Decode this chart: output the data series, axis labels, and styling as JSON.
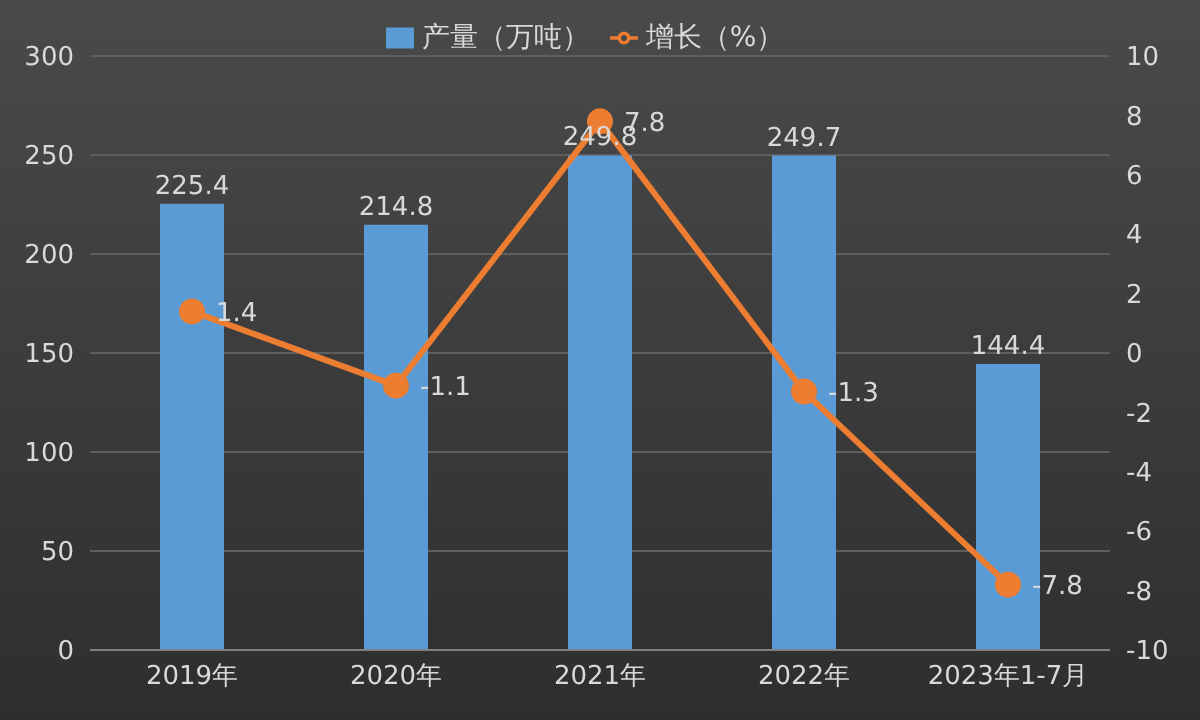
{
  "chart_data": {
    "type": "bar",
    "categories": [
      "2019年",
      "2020年",
      "2021年",
      "2022年",
      "2023年1-7月"
    ],
    "series": [
      {
        "name": "产量（万吨）",
        "color": "#5b9bd5",
        "values": [
          225.4,
          214.8,
          249.8,
          249.7,
          144.4
        ]
      },
      {
        "name": "增长（%）",
        "type": "line",
        "axis": "y2",
        "color": "#ed7d31",
        "values": [
          1.4,
          -1.1,
          7.8,
          -1.3,
          -7.8
        ]
      }
    ],
    "ylim": [
      0,
      300
    ],
    "yticks": [
      0,
      50,
      100,
      150,
      200,
      250,
      300
    ],
    "y2lim": [
      -10,
      10
    ],
    "y2ticks": [
      -10,
      -8,
      -6,
      -4,
      -2,
      0,
      2,
      4,
      6,
      8,
      10
    ],
    "grid": "y",
    "legend": "top",
    "data_labels": true,
    "marker": "circle"
  }
}
